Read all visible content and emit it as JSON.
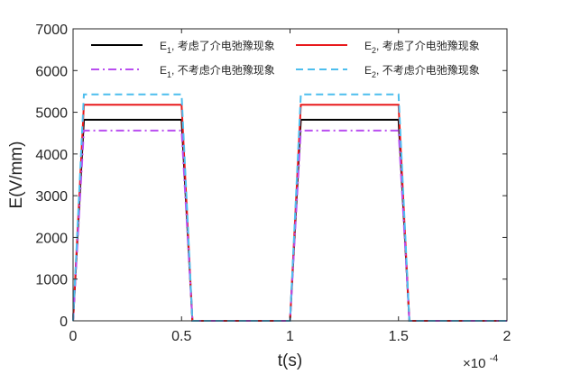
{
  "chart_data": {
    "type": "line",
    "xlabel": "t(s)",
    "ylabel": "E(V/mm)",
    "x_multiplier": "×10",
    "x_multiplier_exp": "-4",
    "xlim": [
      0,
      2
    ],
    "ylim": [
      0,
      7000
    ],
    "x_ticks": [
      0,
      0.5,
      1,
      1.5,
      2
    ],
    "x_tick_labels": [
      "0",
      "0.5",
      "1",
      "1.5",
      "2"
    ],
    "y_ticks": [
      0,
      1000,
      2000,
      3000,
      4000,
      5000,
      6000,
      7000
    ],
    "y_tick_labels": [
      "0",
      "1000",
      "2000",
      "3000",
      "4000",
      "5000",
      "6000",
      "7000"
    ],
    "grid": false,
    "legend_position": "top",
    "legend_columns": 2,
    "series": [
      {
        "name": "E1, 考虑了介电弛豫现象",
        "legend_main": "E",
        "legend_sub": "1",
        "legend_rest": ", 考虑了介电弛豫现象",
        "color": "#000000",
        "dash": "solid",
        "x": [
          0,
          0.05,
          0.5,
          0.55,
          1.0,
          1.05,
          1.5,
          1.55,
          2.0
        ],
        "y": [
          0,
          4820,
          4820,
          0,
          0,
          4820,
          4820,
          0,
          0
        ]
      },
      {
        "name": "E2, 考虑了介电弛豫现象",
        "legend_main": "E",
        "legend_sub": "2",
        "legend_rest": ", 考虑了介电弛豫现象",
        "color": "#e8191c",
        "dash": "solid",
        "x": [
          0,
          0.05,
          0.5,
          0.55,
          1.0,
          1.05,
          1.5,
          1.55,
          2.0
        ],
        "y": [
          0,
          5180,
          5180,
          0,
          0,
          5180,
          5180,
          0,
          0
        ]
      },
      {
        "name": "E1, 不考虑介电弛豫现象",
        "legend_main": "E",
        "legend_sub": "1",
        "legend_rest": ", 不考虑介电弛豫现象",
        "color": "#b94ef0",
        "dash": "dashdot",
        "x": [
          0,
          0.05,
          0.5,
          0.55,
          1.0,
          1.05,
          1.5,
          1.55,
          2.0
        ],
        "y": [
          0,
          4560,
          4560,
          0,
          0,
          4560,
          4560,
          0,
          0
        ]
      },
      {
        "name": "E2, 不考虑介电弛豫现象",
        "legend_main": "E",
        "legend_sub": "2",
        "legend_rest": ", 不考虑介电弛豫现象",
        "color": "#4dbeee",
        "dash": "dashed",
        "x": [
          0,
          0.05,
          0.5,
          0.55,
          1.0,
          1.05,
          1.5,
          1.55,
          2.0
        ],
        "y": [
          0,
          5430,
          5430,
          0,
          0,
          5430,
          5430,
          0,
          0
        ]
      }
    ]
  }
}
